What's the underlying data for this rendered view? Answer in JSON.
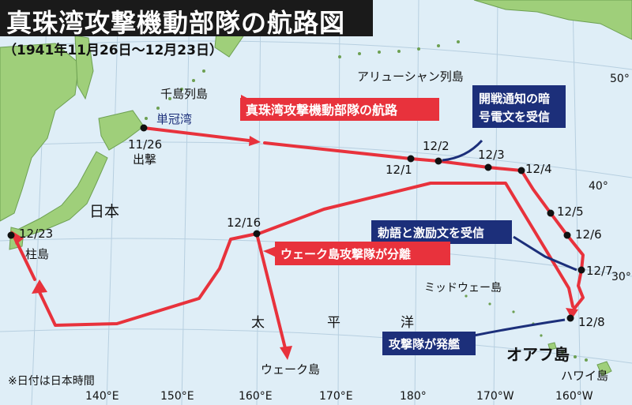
{
  "title": "真珠湾攻撃機動部隊の航路図",
  "subtitle": "（1941年11月26日〜12月23日）",
  "colors": {
    "sea": "#dfeef7",
    "land": "#9fcf7a",
    "route": "#e8323c",
    "callout": "#1c2f7a"
  },
  "place_labels": {
    "chishima": "千島列島",
    "tankappu": "単冠湾",
    "aleutian": "アリューシャン列島",
    "japan": "日本",
    "hashirajima": "柱島",
    "midway": "ミッドウェー島",
    "wake": "ウェーク島",
    "pacific_1": "太",
    "pacific_2": "平",
    "pacific_3": "洋",
    "oahu": "オアフ島",
    "hawaii": "ハワイ島"
  },
  "dates": {
    "d1126": "11/26",
    "sortie": "出撃",
    "d1201": "12/1",
    "d1202": "12/2",
    "d1203": "12/3",
    "d1204": "12/4",
    "d1205": "12/5",
    "d1206": "12/6",
    "d1207": "12/7",
    "d1208": "12/8",
    "d1216": "12/16",
    "d1223": "12/23"
  },
  "callouts": {
    "route": "真珠湾攻撃機動部隊の航路",
    "war_message_1": "開戦通知の暗",
    "war_message_2": "号電文を受信",
    "imperial_message": "勅語と激励文を受信",
    "wake_detach": "ウェーク島攻撃隊が分離",
    "launch": "攻撃隊が発艦"
  },
  "lat_labels": [
    "50°",
    "40°",
    "30°"
  ],
  "lon_labels": [
    "140°E",
    "150°E",
    "160°E",
    "170°E",
    "180°",
    "170°W",
    "160°W"
  ],
  "note": "※日付は日本時間"
}
